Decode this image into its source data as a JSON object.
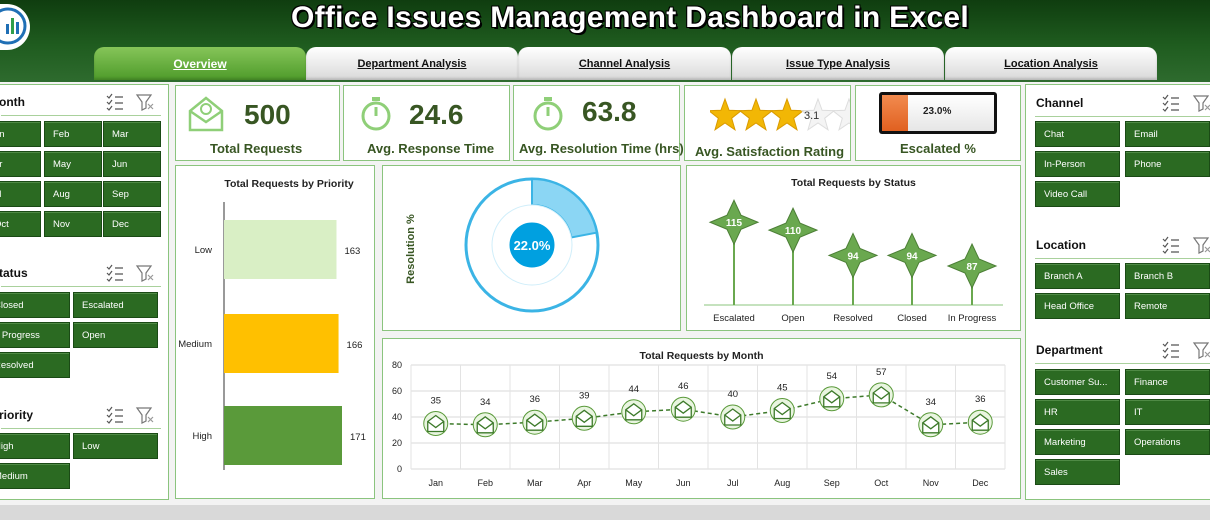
{
  "header": {
    "title": "Office Issues Management Dashboard in Excel"
  },
  "tabs": [
    {
      "label": "Overview",
      "active": true
    },
    {
      "label": "Department Analysis",
      "active": false
    },
    {
      "label": "Channel Analysis",
      "active": false
    },
    {
      "label": "Issue Type Analysis",
      "active": false
    },
    {
      "label": "Location Analysis",
      "active": false
    }
  ],
  "slicers": {
    "month": {
      "title": "onth",
      "items": [
        "an",
        "Feb",
        "Mar",
        "pr",
        "May",
        "Jun",
        "ul",
        "Aug",
        "Sep",
        "Oct",
        "Nov",
        "Dec"
      ]
    },
    "status": {
      "title": "tatus",
      "items": [
        "Closed",
        "Escalated",
        "n Progress",
        "Open",
        "Resolved"
      ]
    },
    "priority": {
      "title": "riority",
      "items": [
        "High",
        "Low",
        "Medium"
      ]
    },
    "channel": {
      "title": "Channel",
      "items": [
        "Chat",
        "Email",
        "In-Person",
        "Phone",
        "Video Call"
      ]
    },
    "location": {
      "title": "Location",
      "items": [
        "Branch A",
        "Branch B",
        "Head Office",
        "Remote"
      ]
    },
    "department": {
      "title": "Department",
      "items": [
        "Customer Su...",
        "Finance",
        "HR",
        "IT",
        "Marketing",
        "Operations",
        "Sales"
      ]
    }
  },
  "kpis": {
    "total_requests": {
      "value": "500",
      "label": "Total Requests"
    },
    "avg_response": {
      "value": "24.6",
      "label": "Avg. Response Time"
    },
    "avg_resolution": {
      "value": "63.8",
      "label": "Avg. Resolution Time (hrs)"
    },
    "satisfaction": {
      "value": "3.1",
      "label": "Avg. Satisfaction Rating",
      "rating": 3.1,
      "max": 5
    },
    "escalated": {
      "value": "23.0%",
      "label": "Escalated %",
      "fraction": 0.23
    }
  },
  "colors": {
    "dark_green": "#385623",
    "button_green": "#2b6a22",
    "accent_orange": "#e97132",
    "light_green": "#d9efc5",
    "yellow": "#ffc000",
    "mid_green": "#5a9a3a",
    "star": "#f2b705",
    "blue": "#00b0f0"
  },
  "chart_data": [
    {
      "type": "bar",
      "title": "Total Requests by Priority",
      "categories": [
        "Low",
        "Medium",
        "High"
      ],
      "values": [
        163,
        166,
        171
      ],
      "colors": [
        "#d9efc5",
        "#ffc000",
        "#5a9a3a"
      ]
    },
    {
      "type": "pie",
      "title": "",
      "ylabel": "Resolution %",
      "values": [
        22.0,
        78.0
      ],
      "center_label": "22.0%"
    },
    {
      "type": "scatter",
      "title": "Total Requests by Status",
      "categories": [
        "Escalated",
        "Open",
        "Resolved",
        "Closed",
        "In Progress"
      ],
      "values": [
        115,
        110,
        94,
        94,
        87
      ]
    },
    {
      "type": "line",
      "title": "Total Requests by Month",
      "categories": [
        "Jan",
        "Feb",
        "Mar",
        "Apr",
        "May",
        "Jun",
        "Jul",
        "Aug",
        "Sep",
        "Oct",
        "Nov",
        "Dec"
      ],
      "values": [
        35,
        34,
        36,
        39,
        44,
        46,
        40,
        45,
        54,
        57,
        34,
        36
      ],
      "ylim": [
        0,
        80
      ],
      "yticks": [
        0,
        20,
        40,
        60,
        80
      ],
      "grid": true
    }
  ]
}
